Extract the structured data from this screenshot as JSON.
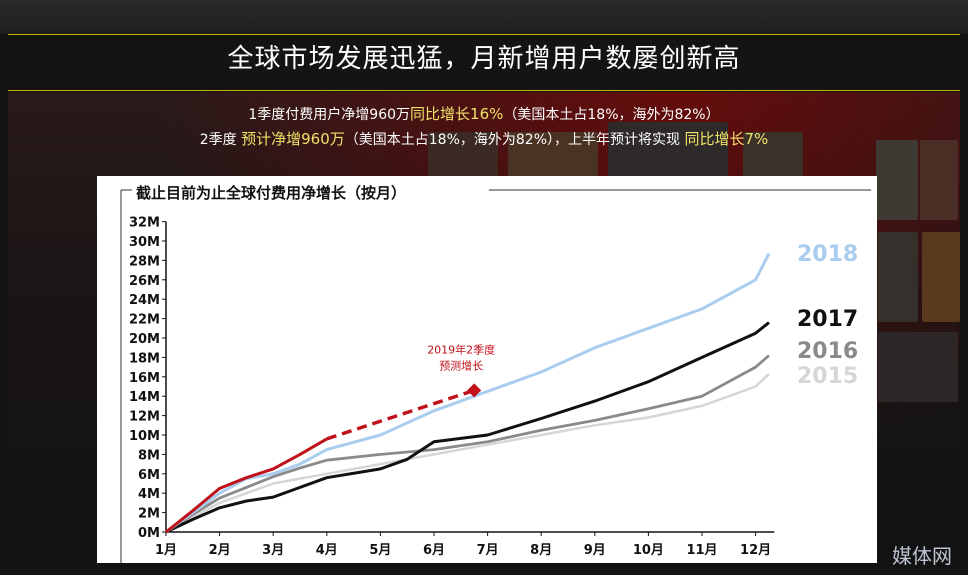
{
  "slide": {
    "title": "全球市场发展迅猛，月新增用户数屡创新高",
    "line1": {
      "text_a": "1季度付费用户净增960万",
      "highlight": "同比增长16%",
      "text_b": "（美国本土占18%，海外为82%）"
    },
    "line2": {
      "text_a": "2季度",
      "highlight_a": "预计净增960万",
      "text_b": "（美国本土占18%，海外为82%），上半年预计将实现",
      "highlight_b": "同比增长7%"
    },
    "watermark": "媒体网",
    "colors": {
      "accent_rule": "#c8b400",
      "highlight": "#f0e36a"
    }
  },
  "chart_data": {
    "type": "line",
    "title": "截止目前为止全球付费用净增长（按月）",
    "x_categories": [
      "1月",
      "2月",
      "3月",
      "4月",
      "5月",
      "6月",
      "7月",
      "8月",
      "9月",
      "10月",
      "11月",
      "12月"
    ],
    "y_ticks": [
      "0M",
      "2M",
      "4M",
      "6M",
      "8M",
      "10M",
      "12M",
      "14M",
      "16M",
      "18M",
      "20M",
      "22M",
      "24M",
      "26M",
      "28M",
      "30M",
      "32M"
    ],
    "ylim": [
      0,
      32
    ],
    "y_unit": "M",
    "series": [
      {
        "name": "2015",
        "color": "#d6d6d6",
        "points": [
          [
            1,
            0
          ],
          [
            1.5,
            1.5
          ],
          [
            2,
            3
          ],
          [
            2.5,
            4
          ],
          [
            3,
            5
          ],
          [
            3.5,
            5.5
          ],
          [
            4,
            6
          ],
          [
            5,
            7
          ],
          [
            6,
            8
          ],
          [
            7,
            9
          ],
          [
            8,
            10
          ],
          [
            9,
            11
          ],
          [
            10,
            11.8
          ],
          [
            11,
            13
          ],
          [
            12,
            15
          ],
          [
            12.25,
            16.3
          ]
        ]
      },
      {
        "name": "2016",
        "color": "#8a8a8a",
        "points": [
          [
            1,
            0
          ],
          [
            1.5,
            1.8
          ],
          [
            2,
            3.5
          ],
          [
            2.5,
            4.6
          ],
          [
            3,
            5.7
          ],
          [
            3.5,
            6.6
          ],
          [
            4,
            7.4
          ],
          [
            5,
            8
          ],
          [
            6,
            8.5
          ],
          [
            7,
            9.3
          ],
          [
            8,
            10.5
          ],
          [
            9,
            11.5
          ],
          [
            10,
            12.7
          ],
          [
            11,
            14
          ],
          [
            12,
            17
          ],
          [
            12.25,
            18.2
          ]
        ]
      },
      {
        "name": "2017",
        "color": "#111111",
        "points": [
          [
            1,
            0
          ],
          [
            1.5,
            1.3
          ],
          [
            2,
            2.5
          ],
          [
            2.5,
            3.2
          ],
          [
            3,
            3.6
          ],
          [
            3.5,
            4.6
          ],
          [
            4,
            5.6
          ],
          [
            5,
            6.5
          ],
          [
            5.5,
            7.5
          ],
          [
            6,
            9.3
          ],
          [
            7,
            10
          ],
          [
            8,
            11.7
          ],
          [
            9,
            13.5
          ],
          [
            10,
            15.5
          ],
          [
            11,
            18
          ],
          [
            12,
            20.5
          ],
          [
            12.25,
            21.6
          ]
        ]
      },
      {
        "name": "2018",
        "color": "#a9cdef",
        "points": [
          [
            1,
            0
          ],
          [
            1.5,
            2
          ],
          [
            2,
            4
          ],
          [
            2.5,
            5.5
          ],
          [
            3,
            6
          ],
          [
            3.5,
            7
          ],
          [
            4,
            8.5
          ],
          [
            5,
            10
          ],
          [
            6,
            12.5
          ],
          [
            7,
            14.5
          ],
          [
            8,
            16.5
          ],
          [
            9,
            19
          ],
          [
            10,
            21
          ],
          [
            11,
            23
          ],
          [
            12,
            26
          ],
          [
            12.25,
            28.7
          ]
        ]
      },
      {
        "name": "2019",
        "color": "#c0111a",
        "points": [
          [
            1,
            0
          ],
          [
            1.5,
            2.2
          ],
          [
            2,
            4.5
          ],
          [
            2.5,
            5.6
          ],
          [
            3,
            6.5
          ],
          [
            3.5,
            8
          ],
          [
            4,
            9.6
          ]
        ]
      }
    ],
    "projection": {
      "label_line1": "2019年2季度",
      "label_line2": "预测增长",
      "color": "#c0111a",
      "from": [
        4,
        9.6
      ],
      "to": [
        6.75,
        14.6
      ]
    }
  }
}
